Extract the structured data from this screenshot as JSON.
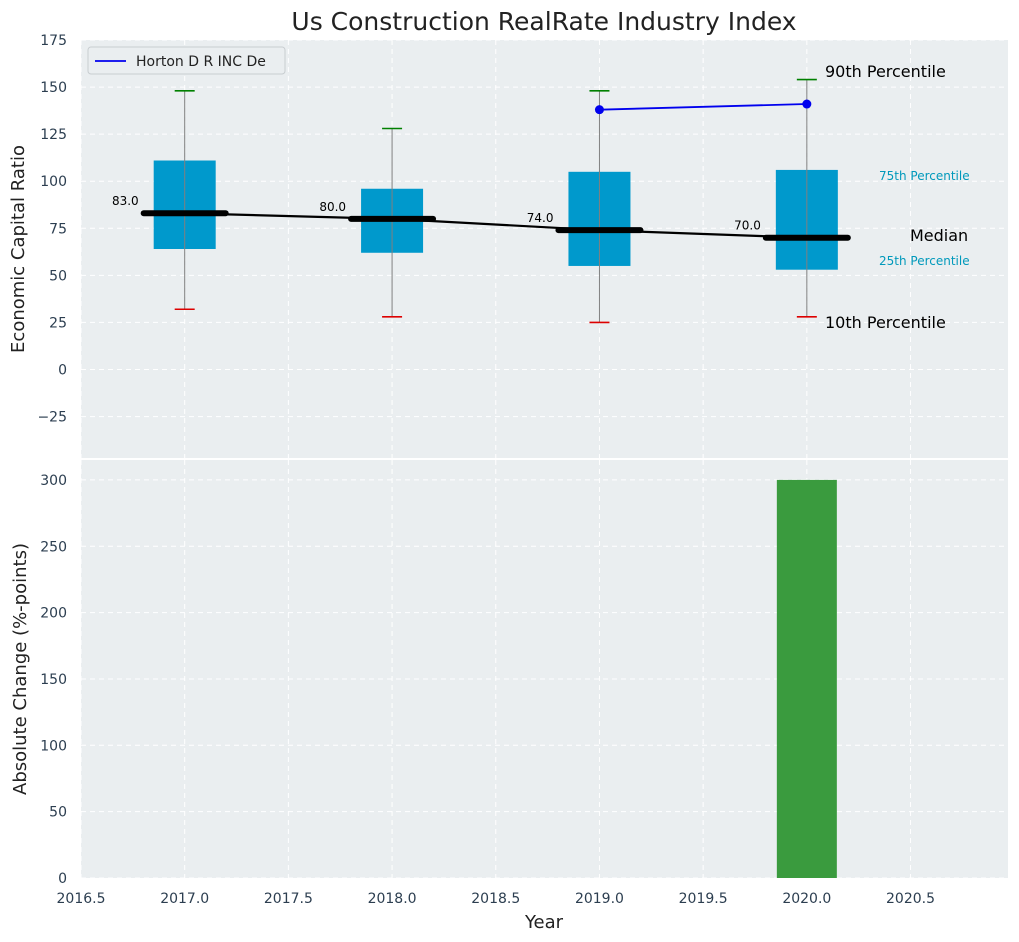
{
  "chart_data": [
    {
      "type": "box",
      "title": "Us Construction RealRate Industry Index",
      "ylabel": "Economic Capital Ratio",
      "xlim": [
        2016.5,
        2020.97
      ],
      "ylim": [
        -47,
        175
      ],
      "yticks": [
        -25,
        0,
        25,
        50,
        75,
        100,
        125,
        150,
        175
      ],
      "grid": true,
      "legend": {
        "position": "top-left",
        "entries": [
          "Horton D R INC De"
        ]
      },
      "boxes": [
        {
          "x": 2017.0,
          "p10": 32,
          "p25": 64,
          "median": 83,
          "p75": 111,
          "p90": 148,
          "median_label": "83.0"
        },
        {
          "x": 2018.0,
          "p10": 28,
          "p25": 62,
          "median": 80,
          "p75": 96,
          "p90": 128,
          "median_label": "80.0"
        },
        {
          "x": 2019.0,
          "p10": 25,
          "p25": 55,
          "median": 74,
          "p75": 105,
          "p90": 148,
          "median_label": "74.0"
        },
        {
          "x": 2020.0,
          "p10": 28,
          "p25": 53,
          "median": 70,
          "p75": 106,
          "p90": 154,
          "median_label": "70.0"
        }
      ],
      "series": [
        {
          "name": "Horton D R INC De",
          "x": [
            2019.0,
            2020.0
          ],
          "values": [
            138,
            141
          ],
          "color": "#0000ee"
        }
      ],
      "annotations": {
        "p90": "90th Percentile",
        "p75": "75th Percentile",
        "median": "Median",
        "p25": "25th Percentile",
        "p10": "10th Percentile"
      }
    },
    {
      "type": "bar",
      "xlabel": "Year",
      "ylabel": "Absolute Change (%-points)",
      "xlim": [
        2016.5,
        2020.97
      ],
      "ylim": [
        0,
        315
      ],
      "yticks": [
        0,
        50,
        100,
        150,
        200,
        250,
        300
      ],
      "xticks": [
        "2016.5",
        "2017.0",
        "2017.5",
        "2018.0",
        "2018.5",
        "2019.0",
        "2019.5",
        "2020.0",
        "2020.5"
      ],
      "grid": true,
      "bars": [
        {
          "x": 2020.0,
          "value": 300
        }
      ]
    }
  ],
  "colors": {
    "plot_bg": "#eaeef0",
    "grid": "#ffffff",
    "box_fill": "#0099cc",
    "whisker_top": "#008000",
    "whisker_bottom": "#dd0000",
    "median_line": "#000000",
    "company_line": "#0000ee",
    "bar": "#3a9b3e",
    "percentile_text": "#0099bb"
  }
}
